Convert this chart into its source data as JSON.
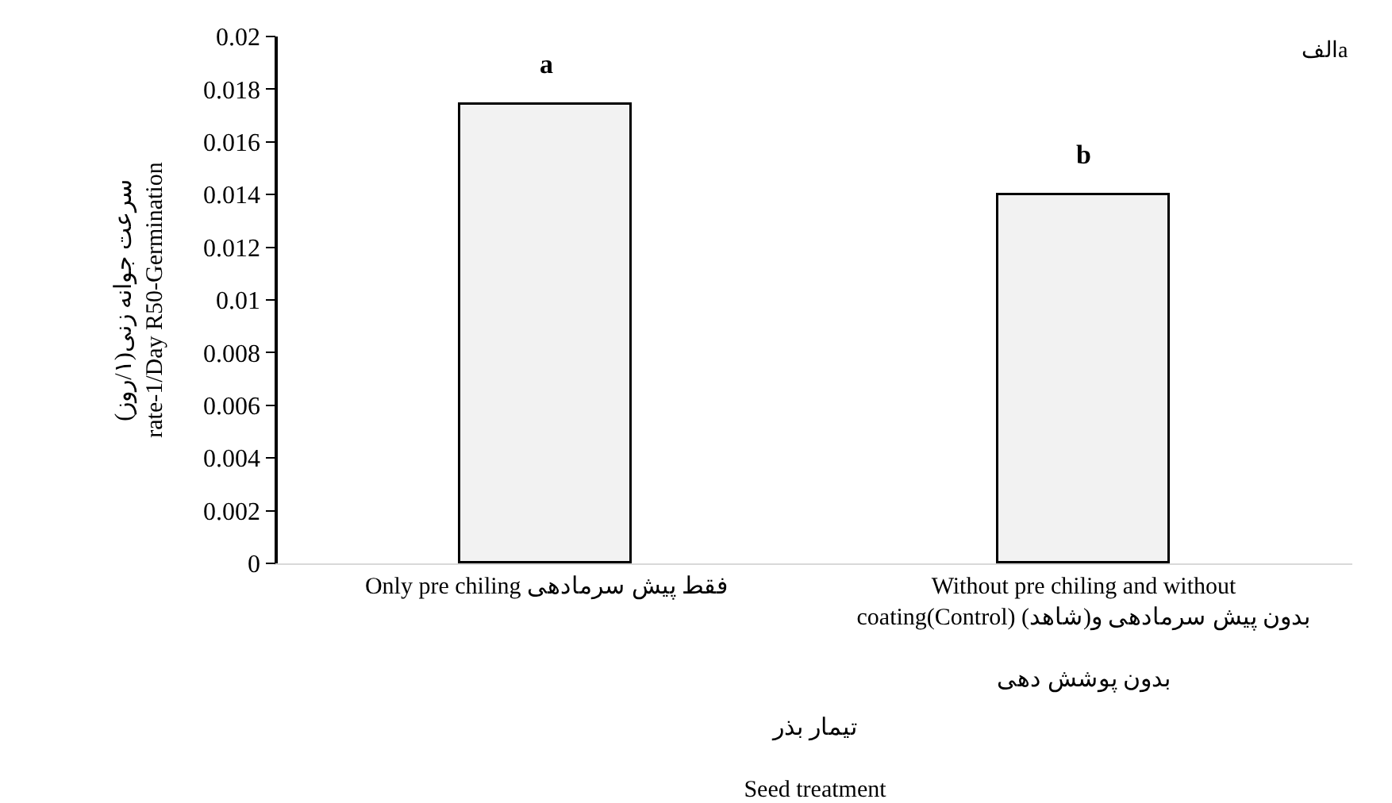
{
  "chart_data": {
    "type": "bar",
    "categories": [
      "Only pre chiling فقط پیش سرمادهی",
      "Without pre chiling and without\ncoating(Control) (شاهد)بدون پیش سرمادهی و\n\nبدون پوشش دهی"
    ],
    "values": [
      0.0174,
      0.014
    ],
    "color": "#f2f2f2",
    "xlabel": "تیمار بذر\n\nSeed treatment",
    "ylabel": "سرعت جوانه زنی(۱/روز)\nrate-1/Day R50-Germination",
    "ylim": [
      0,
      0.02
    ],
    "yticks": [
      0,
      0.002,
      0.004,
      0.006,
      0.008,
      0.01,
      0.012,
      0.014,
      0.016,
      0.018,
      0.02
    ],
    "grid": false,
    "annotations": [
      {
        "text": "a",
        "x": "Only pre chiling فقط پیش سرمادهی",
        "y": 0.0174
      },
      {
        "text": "b",
        "x": "Without pre chiling and without\ncoating(Control) (شاهد)بدون پیش سرمادهی و\n\nبدون پوشش دهی",
        "y": 0.014
      },
      "الفa"
    ]
  }
}
